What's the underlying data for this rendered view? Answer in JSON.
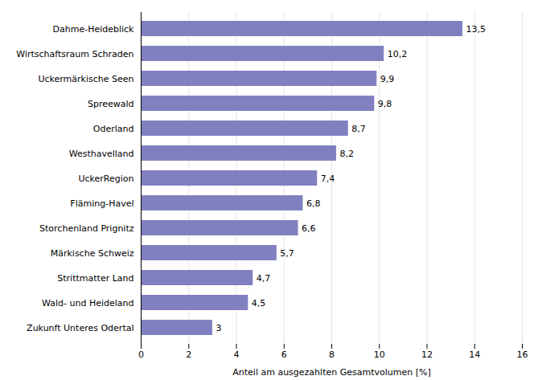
{
  "chart_data": {
    "type": "bar",
    "orientation": "horizontal",
    "categories": [
      "Zukunft Unteres Odertal",
      "Wald- und Heideland",
      "Strittmatter Land",
      "Märkische Schweiz",
      "Storchenland Prignitz",
      "Fläming-Havel",
      "UckerRegion",
      "Westhavelland",
      "Oderland",
      "Spreewald",
      "Uckermärkische Seen",
      "Wirtschaftsraum Schraden",
      "Dahme-Heideblick"
    ],
    "values": [
      3.0,
      4.5,
      4.7,
      5.7,
      6.6,
      6.8,
      7.4,
      8.2,
      8.7,
      9.8,
      9.9,
      10.2,
      13.5
    ],
    "value_labels": [
      "3",
      "4,5",
      "4,7",
      "5,7",
      "6,6",
      "6,8",
      "7,4",
      "8,2",
      "8,7",
      "9,8",
      "9,9",
      "10,2",
      "13,5"
    ],
    "data_labels": true,
    "color": "#8080c0",
    "xlabel": "Anteil am ausgezahlten Gesamtvolumen [%]",
    "xlim": [
      0,
      16
    ],
    "xticks": [
      0,
      2,
      4,
      6,
      8,
      10,
      12,
      14,
      16
    ],
    "grid": true
  }
}
